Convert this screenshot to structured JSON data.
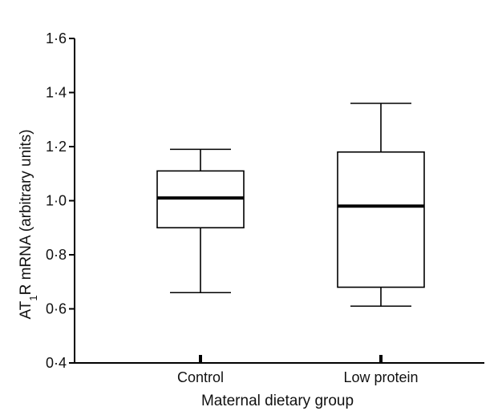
{
  "chart_data": {
    "type": "box",
    "categories": [
      "Control",
      "Low protein"
    ],
    "boxes": [
      {
        "category": "Control",
        "whisker_low": 0.66,
        "q1": 0.9,
        "median": 1.01,
        "q3": 1.11,
        "whisker_high": 1.19
      },
      {
        "category": "Low protein",
        "whisker_low": 0.61,
        "q1": 0.68,
        "median": 0.98,
        "q3": 1.18,
        "whisker_high": 1.36
      }
    ],
    "xlabel": "Maternal dietary group",
    "ylabel_parts": [
      "AT",
      "1",
      "R mRNA (arbitrary units)"
    ],
    "ylim": [
      0.4,
      1.6
    ],
    "yticks": [
      0.4,
      0.6,
      0.8,
      1.0,
      1.2,
      1.4,
      1.6
    ],
    "ytick_labels": [
      "0·4",
      "0·6",
      "0·8",
      "1·0",
      "1·2",
      "1·4",
      "1·6"
    ],
    "grid": false,
    "colors": {
      "box_fill": "#ffffff",
      "stroke": "#000000"
    }
  }
}
